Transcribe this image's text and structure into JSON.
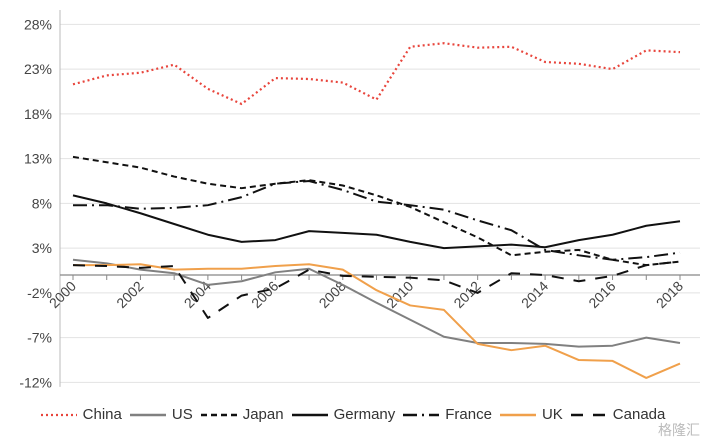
{
  "chart_data": {
    "type": "line",
    "title": "",
    "xlabel": "",
    "ylabel": "",
    "x": [
      2000,
      2001,
      2002,
      2003,
      2004,
      2005,
      2006,
      2007,
      2008,
      2009,
      2010,
      2011,
      2012,
      2013,
      2014,
      2015,
      2016,
      2017,
      2018
    ],
    "x_tick_labels": [
      "2000",
      "2002",
      "2004",
      "2006",
      "2008",
      "2010",
      "2012",
      "2014",
      "2016",
      "2018"
    ],
    "y_tick_values": [
      28,
      23,
      18,
      13,
      8,
      3,
      -2,
      -7,
      -12
    ],
    "y_tick_labels": [
      "28%",
      "23%",
      "18%",
      "13%",
      "8%",
      "3%",
      "-2%",
      "-7%",
      "-12%"
    ],
    "ylim": [
      -12.5,
      28.5
    ],
    "grid": true,
    "legend_position": "bottom",
    "series": [
      {
        "name": "China",
        "color": "#e8453c",
        "style": "dotted",
        "values": [
          21.3,
          22.3,
          22.6,
          23.5,
          20.8,
          19.1,
          22.0,
          21.9,
          21.5,
          19.6,
          25.5,
          25.9,
          25.4,
          25.5,
          23.8,
          23.6,
          23.0,
          25.1,
          24.9
        ]
      },
      {
        "name": "US",
        "color": "#808080",
        "style": "solid",
        "values": [
          1.7,
          1.3,
          0.6,
          0.2,
          -1.1,
          -0.7,
          0.3,
          0.7,
          -1.1,
          -3.1,
          -5.0,
          -6.9,
          -7.6,
          -7.6,
          -7.7,
          -8.0,
          -7.9,
          -7.0,
          -7.6
        ]
      },
      {
        "name": "Japan",
        "color": "#111111",
        "style": "dashed",
        "values": [
          13.2,
          12.6,
          12.0,
          11.0,
          10.2,
          9.7,
          10.2,
          10.6,
          10.0,
          8.9,
          7.6,
          5.9,
          4.2,
          2.2,
          2.6,
          2.8,
          1.7,
          1.1,
          1.5
        ]
      },
      {
        "name": "Germany",
        "color": "#111111",
        "style": "solid",
        "values": [
          8.9,
          8.0,
          6.9,
          5.7,
          4.5,
          3.7,
          3.9,
          4.9,
          4.7,
          4.5,
          3.7,
          3.0,
          3.2,
          3.4,
          3.1,
          3.9,
          4.5,
          5.5,
          6.0
        ]
      },
      {
        "name": "France",
        "color": "#111111",
        "style": "dashdot",
        "values": [
          7.8,
          7.8,
          7.4,
          7.5,
          7.8,
          8.7,
          10.2,
          10.5,
          9.5,
          8.2,
          7.8,
          7.3,
          6.1,
          5.0,
          2.8,
          2.2,
          1.7,
          2.0,
          2.5
        ]
      },
      {
        "name": "UK",
        "color": "#f0a04b",
        "style": "solid",
        "values": [
          1.1,
          1.1,
          1.2,
          0.6,
          0.7,
          0.7,
          1.0,
          1.2,
          0.6,
          -1.7,
          -3.4,
          -3.9,
          -7.7,
          -8.4,
          -7.9,
          -9.5,
          -9.6,
          -11.5,
          -9.9
        ]
      },
      {
        "name": "Canada",
        "color": "#111111",
        "style": "longdash",
        "values": [
          1.1,
          1.0,
          0.8,
          1.0,
          -4.8,
          -2.3,
          -1.5,
          0.6,
          -0.1,
          -0.2,
          -0.3,
          -0.6,
          -2.0,
          0.2,
          0.0,
          -0.7,
          -0.1,
          1.1,
          1.5
        ]
      }
    ]
  },
  "logo": "格隆汇"
}
